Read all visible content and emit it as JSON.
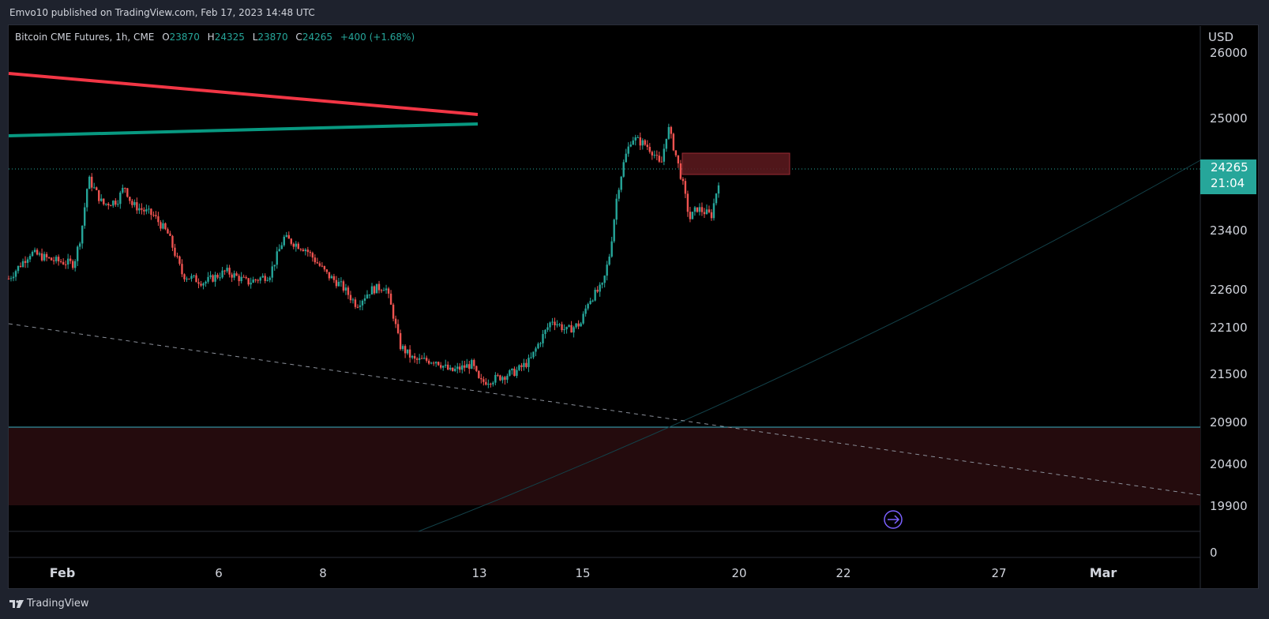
{
  "header": {
    "published_line": "Emvo10 published on TradingView.com, Feb 17, 2023 14:48 UTC"
  },
  "legend": {
    "symbol": "Bitcoin CME Futures, 1h, CME",
    "open_label": "O",
    "open": "23870",
    "high_label": "H",
    "high": "24325",
    "low_label": "L",
    "low": "23870",
    "close_label": "C",
    "close": "24265",
    "change": "+400 (+1.68%)"
  },
  "price_axis": {
    "currency": "USD",
    "last_price": "24265",
    "countdown": "21:04"
  },
  "footer": {
    "brand": "TradingView",
    "logo_icon": "tradingview-logo-icon"
  },
  "colors": {
    "up": "#26a69a",
    "down": "#ef5350",
    "background": "#000000",
    "resistance_line": "#f23645",
    "support_line": "#089981",
    "zone_fill": "#2a0c0e",
    "horizontal_line": "#3ab0c2",
    "highlight_box": "#5e1a1f"
  },
  "chart_data": {
    "type": "candlestick",
    "symbol": "Bitcoin CME Futures",
    "interval": "1h",
    "y_tick_labels": [
      "26000",
      "25000",
      "24265",
      "23400",
      "22600",
      "22100",
      "21500",
      "20900",
      "20400",
      "19900",
      "0"
    ],
    "x_tick_labels": [
      "Feb",
      "6",
      "8",
      "13",
      "15",
      "20",
      "22",
      "27",
      "Mar"
    ],
    "path_anchors": [
      {
        "x": 0,
        "y": 22950
      },
      {
        "x": 3,
        "y": 23300
      },
      {
        "x": 6,
        "y": 23200
      },
      {
        "x": 9,
        "y": 23150
      },
      {
        "x": 10,
        "y": 23550
      },
      {
        "x": 11,
        "y": 24300
      },
      {
        "x": 13,
        "y": 23950
      },
      {
        "x": 15,
        "y": 24000
      },
      {
        "x": 16,
        "y": 24200
      },
      {
        "x": 17,
        "y": 23950
      },
      {
        "x": 20,
        "y": 23800
      },
      {
        "x": 22,
        "y": 23550
      },
      {
        "x": 24,
        "y": 23000
      },
      {
        "x": 27,
        "y": 22900
      },
      {
        "x": 30,
        "y": 23050
      },
      {
        "x": 33,
        "y": 22900
      },
      {
        "x": 36,
        "y": 23000
      },
      {
        "x": 38,
        "y": 23500
      },
      {
        "x": 41,
        "y": 23350
      },
      {
        "x": 44,
        "y": 23000
      },
      {
        "x": 46,
        "y": 22850
      },
      {
        "x": 48,
        "y": 22600
      },
      {
        "x": 50,
        "y": 22800
      },
      {
        "x": 52,
        "y": 22850
      },
      {
        "x": 53,
        "y": 22500
      },
      {
        "x": 54,
        "y": 22050
      },
      {
        "x": 56,
        "y": 21850
      },
      {
        "x": 59,
        "y": 21850
      },
      {
        "x": 61,
        "y": 21700
      },
      {
        "x": 64,
        "y": 21800
      },
      {
        "x": 65,
        "y": 21550
      },
      {
        "x": 67,
        "y": 21600
      },
      {
        "x": 70,
        "y": 21700
      },
      {
        "x": 72,
        "y": 21850
      },
      {
        "x": 73,
        "y": 22050
      },
      {
        "x": 75,
        "y": 22400
      },
      {
        "x": 77,
        "y": 22250
      },
      {
        "x": 79,
        "y": 22350
      },
      {
        "x": 80,
        "y": 22650
      },
      {
        "x": 82,
        "y": 22850
      },
      {
        "x": 83,
        "y": 23300
      },
      {
        "x": 84,
        "y": 24100
      },
      {
        "x": 85,
        "y": 24550
      },
      {
        "x": 86,
        "y": 24850
      },
      {
        "x": 88,
        "y": 24750
      },
      {
        "x": 89,
        "y": 24650
      },
      {
        "x": 90,
        "y": 24450
      },
      {
        "x": 91,
        "y": 25000
      },
      {
        "x": 92,
        "y": 24650
      },
      {
        "x": 93,
        "y": 24250
      },
      {
        "x": 94,
        "y": 23750
      },
      {
        "x": 95,
        "y": 23900
      },
      {
        "x": 97,
        "y": 23800
      },
      {
        "x": 98,
        "y": 24265
      }
    ],
    "resistance_line": {
      "color": "red",
      "label": ""
    },
    "support_line": {
      "color": "green",
      "label": ""
    },
    "horizontal_level": 20900,
    "demand_zone": [
      19900,
      20900
    ],
    "supply_box": [
      24265,
      24450
    ]
  }
}
